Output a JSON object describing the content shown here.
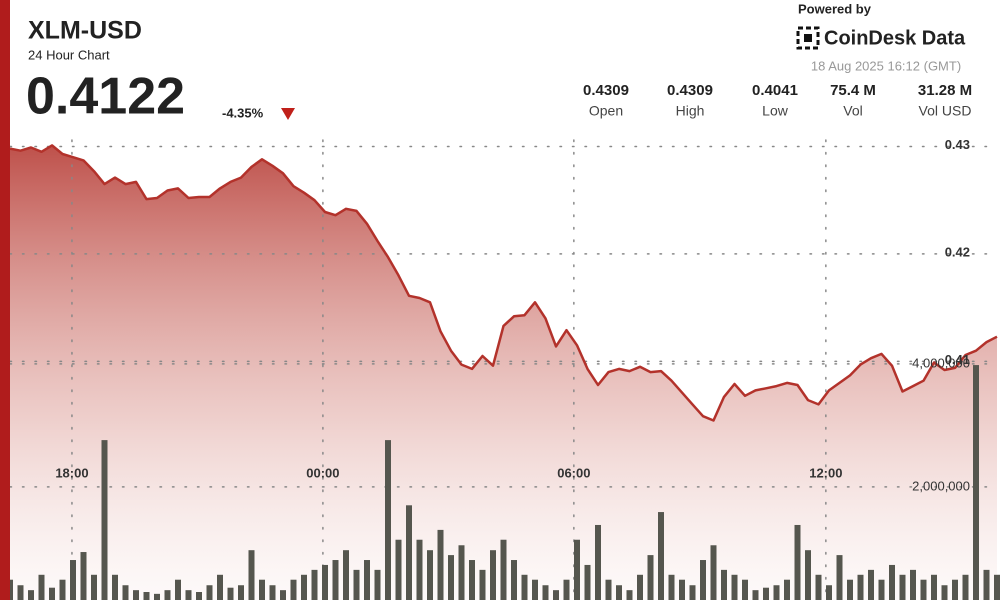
{
  "header": {
    "price": "0.4122",
    "change": "-4.35%",
    "powered_by": "Powered by",
    "brand": "CoinDesk Data",
    "timestamp": "18 Aug 2025 16:12 (GMT)",
    "stats": [
      {
        "value": "0.4309",
        "label": "Open"
      },
      {
        "value": "0.4309",
        "label": "High"
      },
      {
        "value": "0.4041",
        "label": "Low"
      },
      {
        "value": "75.4 M",
        "label": "Vol"
      },
      {
        "value": "31.28 M",
        "label": "Vol USD"
      }
    ]
  },
  "chart_data": {
    "type": "line",
    "title": "XLM-USD",
    "subtitle": "24 Hour Chart",
    "xlim": [
      0,
      94
    ],
    "xticks": [
      {
        "value": 5.9,
        "label": "18:00"
      },
      {
        "value": 29.8,
        "label": "00:00"
      },
      {
        "value": 53.7,
        "label": "06:00"
      },
      {
        "value": 77.7,
        "label": "12:00"
      }
    ],
    "ylim": [
      0.3878,
      0.4306
    ],
    "yticks": [
      0.41,
      0.42,
      0.43
    ],
    "y2lim": [
      160000,
      7640000
    ],
    "y2ticks": [
      {
        "value": 2000000,
        "label": "2,000,000"
      },
      {
        "value": 4000000,
        "label": "4,000,000"
      }
    ],
    "grid": true,
    "series": [
      {
        "color": "#b3322b",
        "values": [
          0.4298,
          0.4296,
          0.4299,
          0.4295,
          0.4301,
          0.4293,
          0.429,
          0.4287,
          0.4277,
          0.4265,
          0.4271,
          0.4265,
          0.4267,
          0.4251,
          0.4252,
          0.4259,
          0.4261,
          0.4252,
          0.4253,
          0.4253,
          0.4261,
          0.4267,
          0.4271,
          0.4281,
          0.4288,
          0.4282,
          0.4275,
          0.4263,
          0.4257,
          0.425,
          0.4239,
          0.4236,
          0.4242,
          0.424,
          0.4228,
          0.4212,
          0.4197,
          0.418,
          0.4161,
          0.4159,
          0.4155,
          0.4128,
          0.411,
          0.4097,
          0.4093,
          0.4105,
          0.4096,
          0.4133,
          0.4142,
          0.4143,
          0.4155,
          0.414,
          0.4114,
          0.4129,
          0.4115,
          0.4093,
          0.4078,
          0.409,
          0.4093,
          0.4091,
          0.4095,
          0.409,
          0.4091,
          0.4082,
          0.4071,
          0.406,
          0.4049,
          0.4045,
          0.4067,
          0.4079,
          0.4068,
          0.4073,
          0.4075,
          0.4077,
          0.408,
          0.4078,
          0.4064,
          0.406,
          0.4073,
          0.408,
          0.4087,
          0.4097,
          0.4103,
          0.4107,
          0.4096,
          0.4072,
          0.4077,
          0.4082,
          0.4099,
          0.4092,
          0.4094,
          0.4106,
          0.411,
          0.4118,
          0.4123
        ]
      },
      {
        "color": "#55564e",
        "type": "bar",
        "axis": "y2",
        "values": [
          490000,
          400000,
          320000,
          570000,
          360000,
          490000,
          810000,
          940000,
          570000,
          2760000,
          570000,
          400000,
          320000,
          290000,
          260000,
          320000,
          490000,
          320000,
          290000,
          400000,
          570000,
          360000,
          400000,
          970000,
          490000,
          400000,
          320000,
          490000,
          570000,
          650000,
          730000,
          810000,
          970000,
          650000,
          810000,
          650000,
          2760000,
          1140000,
          1700000,
          1140000,
          970000,
          1300000,
          890000,
          1050000,
          810000,
          650000,
          970000,
          1140000,
          810000,
          570000,
          490000,
          400000,
          320000,
          490000,
          1140000,
          730000,
          1380000,
          490000,
          400000,
          320000,
          570000,
          890000,
          1590000,
          570000,
          490000,
          400000,
          810000,
          1050000,
          650000,
          570000,
          490000,
          320000,
          360000,
          400000,
          490000,
          1380000,
          970000,
          570000,
          400000,
          890000,
          490000,
          570000,
          650000,
          490000,
          730000,
          570000,
          650000,
          490000,
          570000,
          400000,
          490000,
          570000,
          3980000,
          650000,
          570000
        ]
      }
    ]
  }
}
